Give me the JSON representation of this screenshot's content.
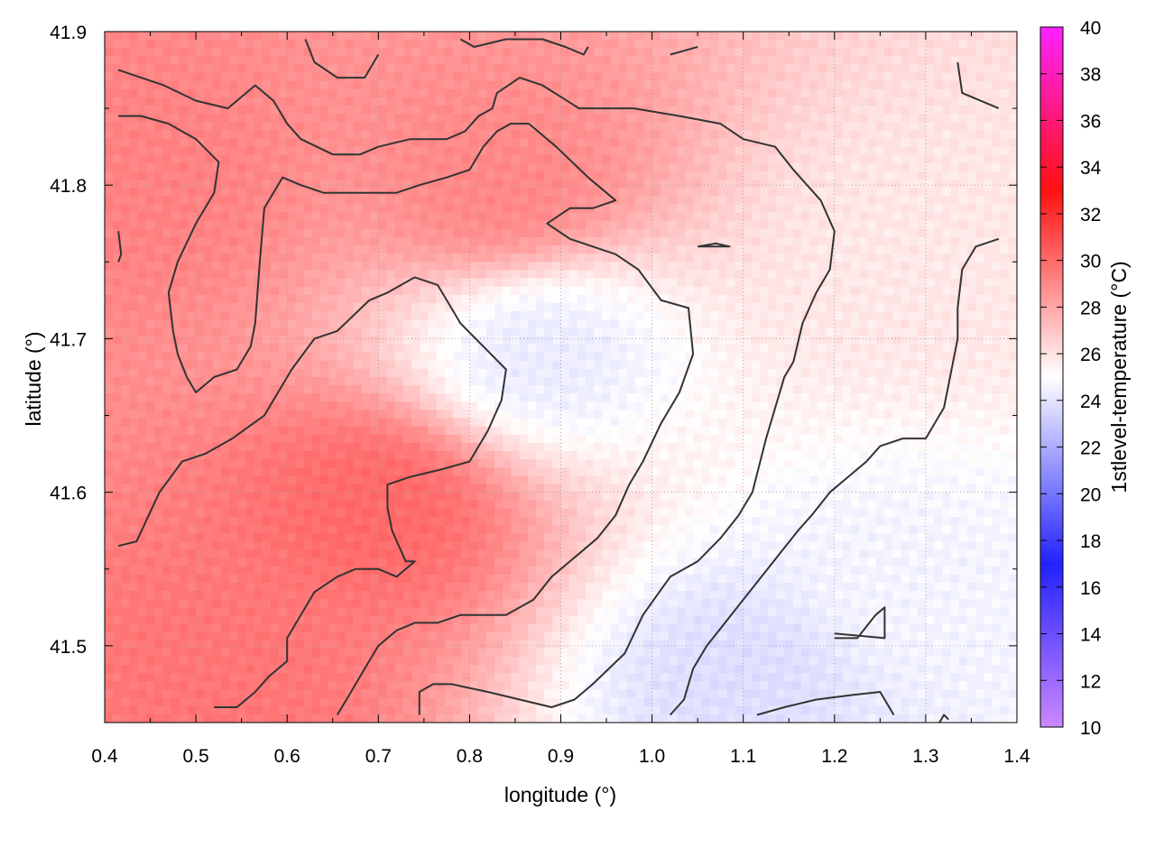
{
  "chart_data": {
    "type": "heatmap",
    "xlabel": "longitude (°)",
    "ylabel": "latitude (°)",
    "colorbar_label": "1stlevel-temperature (°C)",
    "xlim": [
      0.4,
      1.4
    ],
    "ylim": [
      41.45,
      41.9
    ],
    "xticks": [
      "0.4",
      "0.5",
      "0.6",
      "0.7",
      "0.8",
      "0.9",
      "1.0",
      "1.1",
      "1.2",
      "1.3",
      "1.4"
    ],
    "yticks": [
      "41.5",
      "41.6",
      "41.7",
      "41.8",
      "41.9"
    ],
    "colorbar_range": [
      10,
      40
    ],
    "colorbar_ticks": [
      "10",
      "12",
      "14",
      "16",
      "18",
      "20",
      "22",
      "24",
      "26",
      "28",
      "30",
      "32",
      "34",
      "36",
      "38",
      "40"
    ],
    "colorbar_stops": [
      {
        "value": 10,
        "color": "#cc88ff"
      },
      {
        "value": 17,
        "color": "#2222ff"
      },
      {
        "value": 25,
        "color": "#ffffff"
      },
      {
        "value": 33,
        "color": "#ff1111"
      },
      {
        "value": 40,
        "color": "#ff22ff"
      }
    ],
    "grid": true,
    "contour_color": "#333333",
    "field_centers": [
      {
        "lon": 0.7,
        "lat": 41.59,
        "temp": 30.0
      },
      {
        "lon": 0.52,
        "lat": 41.48,
        "temp": 29.6
      },
      {
        "lon": 0.44,
        "lat": 41.8,
        "temp": 29.2
      },
      {
        "lon": 0.83,
        "lat": 41.8,
        "temp": 29.0
      },
      {
        "lon": 0.88,
        "lat": 41.69,
        "temp": 24.3
      },
      {
        "lon": 1.1,
        "lat": 41.48,
        "temp": 23.8
      },
      {
        "lon": 1.28,
        "lat": 41.54,
        "temp": 24.6
      },
      {
        "lon": 1.3,
        "lat": 41.75,
        "temp": 25.8
      }
    ],
    "contours": [
      [
        [
          0.415,
          41.565
        ],
        [
          0.435,
          41.568
        ],
        [
          0.46,
          41.6
        ],
        [
          0.485,
          41.62
        ],
        [
          0.51,
          41.625
        ],
        [
          0.54,
          41.635
        ],
        [
          0.575,
          41.65
        ],
        [
          0.605,
          41.68
        ],
        [
          0.63,
          41.7
        ],
        [
          0.655,
          41.705
        ],
        [
          0.69,
          41.725
        ],
        [
          0.71,
          41.73
        ],
        [
          0.74,
          41.74
        ],
        [
          0.765,
          41.735
        ],
        [
          0.79,
          41.71
        ],
        [
          0.84,
          41.68
        ],
        [
          0.835,
          41.66
        ],
        [
          0.82,
          41.64
        ],
        [
          0.8,
          41.62
        ],
        [
          0.77,
          41.615
        ],
        [
          0.735,
          41.61
        ],
        [
          0.71,
          41.605
        ],
        [
          0.71,
          41.59
        ],
        [
          0.715,
          41.575
        ],
        [
          0.73,
          41.555
        ],
        [
          0.74,
          41.555
        ],
        [
          0.72,
          41.545
        ],
        [
          0.7,
          41.55
        ],
        [
          0.675,
          41.55
        ],
        [
          0.655,
          41.545
        ],
        [
          0.63,
          41.535
        ],
        [
          0.615,
          41.52
        ],
        [
          0.6,
          41.505
        ],
        [
          0.6,
          41.49
        ],
        [
          0.58,
          41.48
        ],
        [
          0.565,
          41.47
        ],
        [
          0.545,
          41.46
        ],
        [
          0.52,
          41.46
        ]
      ],
      [
        [
          0.655,
          41.455
        ],
        [
          0.67,
          41.47
        ],
        [
          0.685,
          41.485
        ],
        [
          0.7,
          41.5
        ],
        [
          0.72,
          41.51
        ],
        [
          0.74,
          41.515
        ],
        [
          0.765,
          41.515
        ],
        [
          0.79,
          41.52
        ],
        [
          0.84,
          41.52
        ],
        [
          0.87,
          41.53
        ],
        [
          0.89,
          41.545
        ],
        [
          0.92,
          41.56
        ],
        [
          0.94,
          41.57
        ],
        [
          0.96,
          41.585
        ],
        [
          0.975,
          41.605
        ],
        [
          0.99,
          41.62
        ],
        [
          1.01,
          41.645
        ],
        [
          1.03,
          41.665
        ],
        [
          1.045,
          41.69
        ],
        [
          1.04,
          41.72
        ],
        [
          1.01,
          41.725
        ],
        [
          0.985,
          41.745
        ],
        [
          0.96,
          41.755
        ],
        [
          0.935,
          41.76
        ],
        [
          0.91,
          41.765
        ],
        [
          0.885,
          41.775
        ],
        [
          0.91,
          41.785
        ],
        [
          0.935,
          41.785
        ],
        [
          0.96,
          41.79
        ],
        [
          0.93,
          41.805
        ],
        [
          0.895,
          41.825
        ],
        [
          0.865,
          41.84
        ],
        [
          0.845,
          41.84
        ],
        [
          0.83,
          41.835
        ],
        [
          0.815,
          41.825
        ],
        [
          0.8,
          41.81
        ],
        [
          0.775,
          41.805
        ],
        [
          0.745,
          41.8
        ],
        [
          0.72,
          41.795
        ],
        [
          0.69,
          41.795
        ],
        [
          0.64,
          41.795
        ],
        [
          0.615,
          41.8
        ],
        [
          0.595,
          41.805
        ],
        [
          0.575,
          41.785
        ],
        [
          0.57,
          41.75
        ],
        [
          0.565,
          41.71
        ],
        [
          0.56,
          41.695
        ],
        [
          0.545,
          41.68
        ],
        [
          0.52,
          41.675
        ],
        [
          0.5,
          41.665
        ],
        [
          0.49,
          41.675
        ],
        [
          0.48,
          41.69
        ],
        [
          0.475,
          41.705
        ],
        [
          0.47,
          41.73
        ],
        [
          0.48,
          41.75
        ],
        [
          0.5,
          41.775
        ],
        [
          0.52,
          41.795
        ],
        [
          0.525,
          41.815
        ],
        [
          0.5,
          41.83
        ],
        [
          0.47,
          41.84
        ],
        [
          0.44,
          41.845
        ],
        [
          0.415,
          41.845
        ]
      ],
      [
        [
          0.745,
          41.455
        ],
        [
          0.745,
          41.47
        ],
        [
          0.76,
          41.475
        ],
        [
          0.78,
          41.475
        ],
        [
          0.82,
          41.47
        ],
        [
          0.855,
          41.465
        ],
        [
          0.89,
          41.46
        ],
        [
          0.915,
          41.465
        ],
        [
          0.935,
          41.475
        ],
        [
          0.97,
          41.495
        ],
        [
          0.99,
          41.52
        ],
        [
          1.02,
          41.545
        ],
        [
          1.05,
          41.555
        ],
        [
          1.075,
          41.57
        ],
        [
          1.095,
          41.585
        ],
        [
          1.11,
          41.6
        ],
        [
          1.125,
          41.635
        ],
        [
          1.145,
          41.675
        ],
        [
          1.155,
          41.685
        ],
        [
          1.165,
          41.71
        ],
        [
          1.18,
          41.73
        ],
        [
          1.195,
          41.745
        ],
        [
          1.2,
          41.77
        ],
        [
          1.185,
          41.79
        ],
        [
          1.155,
          41.81
        ],
        [
          1.135,
          41.825
        ],
        [
          1.1,
          41.83
        ],
        [
          1.075,
          41.84
        ],
        [
          1.03,
          41.845
        ],
        [
          0.98,
          41.85
        ],
        [
          0.92,
          41.85
        ],
        [
          0.88,
          41.865
        ],
        [
          0.855,
          41.87
        ],
        [
          0.83,
          41.86
        ],
        [
          0.825,
          41.85
        ],
        [
          0.81,
          41.845
        ],
        [
          0.795,
          41.835
        ],
        [
          0.775,
          41.83
        ],
        [
          0.76,
          41.83
        ],
        [
          0.735,
          41.83
        ],
        [
          0.7,
          41.825
        ],
        [
          0.68,
          41.82
        ],
        [
          0.65,
          41.82
        ],
        [
          0.615,
          41.83
        ],
        [
          0.6,
          41.84
        ],
        [
          0.585,
          41.855
        ],
        [
          0.565,
          41.865
        ],
        [
          0.555,
          41.86
        ],
        [
          0.535,
          41.85
        ],
        [
          0.5,
          41.855
        ],
        [
          0.465,
          41.865
        ],
        [
          0.44,
          41.87
        ],
        [
          0.415,
          41.875
        ]
      ],
      [
        [
          1.02,
          41.455
        ],
        [
          1.035,
          41.465
        ],
        [
          1.045,
          41.485
        ],
        [
          1.06,
          41.5
        ],
        [
          1.08,
          41.515
        ],
        [
          1.1,
          41.53
        ],
        [
          1.12,
          41.545
        ],
        [
          1.14,
          41.56
        ],
        [
          1.16,
          41.575
        ],
        [
          1.175,
          41.585
        ],
        [
          1.195,
          41.6
        ],
        [
          1.215,
          41.61
        ],
        [
          1.235,
          41.62
        ],
        [
          1.25,
          41.63
        ],
        [
          1.275,
          41.635
        ],
        [
          1.3,
          41.635
        ],
        [
          1.32,
          41.655
        ],
        [
          1.325,
          41.67
        ],
        [
          1.335,
          41.7
        ],
        [
          1.335,
          41.72
        ],
        [
          1.34,
          41.745
        ],
        [
          1.355,
          41.76
        ],
        [
          1.38,
          41.765
        ]
      ],
      [
        [
          1.115,
          41.455
        ],
        [
          1.145,
          41.46
        ],
        [
          1.18,
          41.465
        ],
        [
          1.22,
          41.468
        ],
        [
          1.25,
          41.47
        ],
        [
          1.265,
          41.455
        ]
      ],
      [
        [
          1.2,
          41.505
        ],
        [
          1.225,
          41.505
        ],
        [
          1.245,
          41.52
        ],
        [
          1.255,
          41.525
        ],
        [
          1.255,
          41.505
        ],
        [
          1.2,
          41.508
        ]
      ],
      [
        [
          0.62,
          41.895
        ],
        [
          0.63,
          41.88
        ],
        [
          0.655,
          41.87
        ],
        [
          0.685,
          41.87
        ],
        [
          0.7,
          41.885
        ]
      ],
      [
        [
          0.79,
          41.895
        ],
        [
          0.805,
          41.89
        ],
        [
          0.84,
          41.895
        ],
        [
          0.88,
          41.895
        ],
        [
          0.905,
          41.89
        ],
        [
          0.925,
          41.885
        ],
        [
          0.93,
          41.89
        ]
      ],
      [
        [
          1.02,
          41.885
        ],
        [
          1.05,
          41.89
        ]
      ],
      [
        [
          1.335,
          41.88
        ],
        [
          1.34,
          41.86
        ],
        [
          1.38,
          41.85
        ]
      ],
      [
        [
          0.415,
          41.77
        ],
        [
          0.418,
          41.755
        ],
        [
          0.415,
          41.75
        ]
      ],
      [
        [
          1.05,
          41.76
        ],
        [
          1.07,
          41.762
        ],
        [
          1.085,
          41.76
        ],
        [
          1.05,
          41.76
        ]
      ],
      [
        [
          1.315,
          41.45
        ],
        [
          1.32,
          41.455
        ],
        [
          1.325,
          41.452
        ]
      ]
    ]
  }
}
